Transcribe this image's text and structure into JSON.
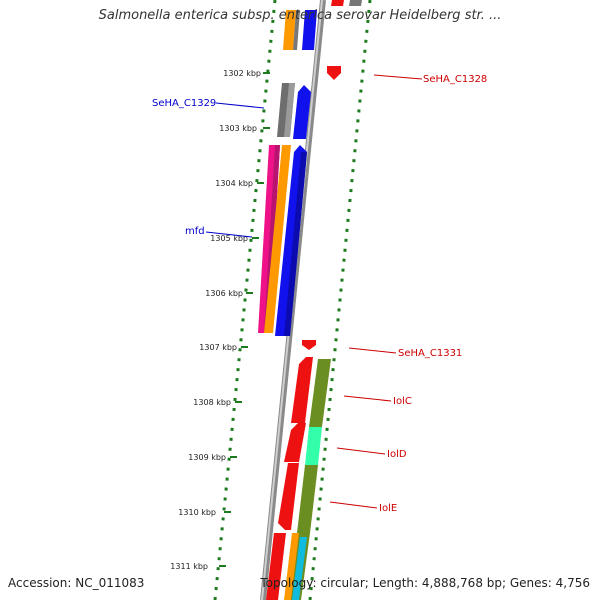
{
  "title": "Salmonella enterica subsp. enterica serovar Heidelberg str. ...",
  "accession": "Accession: NC_011083",
  "topology": "Topology: circular; Length: 4,888,768 bp; Genes: 4,756",
  "ticks": [
    "1302 kbp",
    "1303 kbp",
    "1304 kbp",
    "1305 kbp",
    "1306 kbp",
    "1307 kbp",
    "1308 kbp",
    "1309 kbp",
    "1310 kbp",
    "1311 kbp"
  ],
  "gene_labels": {
    "seha_c1328": "SeHA_C1328",
    "seha_c1329": "SeHA_C1329",
    "mfd": "mfd",
    "seha_c1331": "SeHA_C1331",
    "iolc": "IolC",
    "iold": "IolD",
    "iole": "IolE"
  },
  "colors": {
    "forward_label": "#0000cc",
    "reverse_label": "#cc0000",
    "backbone": "#888888",
    "dots": "#1e7a1e",
    "red": "#ee1111",
    "blue": "#1111ee",
    "grey": "#777777",
    "orange": "#ff9900",
    "magenta": "#ee1188",
    "olive": "#6b8e23",
    "aqua": "#33ffaa",
    "cyan": "#11bbdd"
  }
}
